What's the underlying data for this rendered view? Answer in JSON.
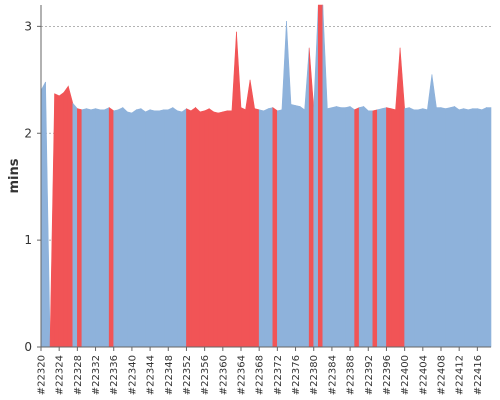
{
  "chart_data": {
    "type": "area",
    "title": "",
    "xlabel": "",
    "ylabel": "mins",
    "ylim": [
      0,
      3.2
    ],
    "yticks": [
      0,
      1,
      2,
      3
    ],
    "grid": "horizontal-dotted",
    "x_tick_labels": [
      "#22320",
      "#22324",
      "#22328",
      "#22332",
      "#22336",
      "#22340",
      "#22344",
      "#22348",
      "#22352",
      "#22356",
      "#22360",
      "#22364",
      "#22368",
      "#22372",
      "#22376",
      "#22380",
      "#22384",
      "#22388",
      "#22392",
      "#22396",
      "#22400",
      "#22404",
      "#22408",
      "#22412",
      "#22416"
    ],
    "x": [
      22320,
      22321,
      22322,
      22323,
      22324,
      22325,
      22326,
      22327,
      22328,
      22329,
      22330,
      22331,
      22332,
      22333,
      22334,
      22335,
      22336,
      22337,
      22338,
      22339,
      22340,
      22341,
      22342,
      22343,
      22344,
      22345,
      22346,
      22347,
      22348,
      22349,
      22350,
      22351,
      22352,
      22353,
      22354,
      22355,
      22356,
      22357,
      22358,
      22359,
      22360,
      22361,
      22362,
      22363,
      22364,
      22365,
      22366,
      22367,
      22368,
      22369,
      22370,
      22371,
      22372,
      22373,
      22374,
      22375,
      22376,
      22377,
      22378,
      22379,
      22380,
      22381,
      22382,
      22383,
      22384,
      22385,
      22386,
      22387,
      22388,
      22389,
      22390,
      22391,
      22392,
      22393,
      22394,
      22395,
      22396,
      22397,
      22398,
      22399,
      22400,
      22401,
      22402,
      22403,
      22404,
      22405,
      22406,
      22407,
      22408,
      22409,
      22410,
      22411,
      22412,
      22413,
      22414,
      22415,
      22416,
      22417,
      22418,
      22419
    ],
    "values": [
      2.4,
      2.48,
      0.05,
      2.37,
      2.35,
      2.38,
      2.44,
      2.28,
      2.23,
      2.22,
      2.23,
      2.22,
      2.23,
      2.22,
      2.22,
      2.24,
      2.21,
      2.22,
      2.24,
      2.2,
      2.19,
      2.22,
      2.23,
      2.2,
      2.22,
      2.21,
      2.21,
      2.22,
      2.22,
      2.24,
      2.21,
      2.2,
      2.23,
      2.21,
      2.24,
      2.2,
      2.21,
      2.23,
      2.2,
      2.19,
      2.2,
      2.21,
      2.21,
      2.95,
      2.24,
      2.22,
      2.5,
      2.23,
      2.22,
      2.21,
      2.23,
      2.24,
      2.21,
      2.22,
      3.05,
      2.27,
      2.26,
      2.25,
      2.22,
      2.8,
      2.24,
      3.2,
      3.2,
      2.23,
      2.24,
      2.25,
      2.24,
      2.24,
      2.25,
      2.22,
      2.24,
      2.25,
      2.21,
      2.21,
      2.22,
      2.23,
      2.24,
      2.23,
      2.22,
      2.8,
      2.23,
      2.24,
      2.22,
      2.22,
      2.23,
      2.22,
      2.55,
      2.24,
      2.24,
      2.23,
      2.24,
      2.25,
      2.22,
      2.23,
      2.22,
      2.23,
      2.23,
      2.22,
      2.24,
      2.24
    ],
    "status": [
      "ok",
      "ok",
      "fail",
      "fail",
      "fail",
      "fail",
      "fail",
      "ok",
      "fail",
      "ok",
      "ok",
      "ok",
      "ok",
      "ok",
      "ok",
      "fail",
      "ok",
      "ok",
      "ok",
      "ok",
      "ok",
      "ok",
      "ok",
      "ok",
      "ok",
      "ok",
      "ok",
      "ok",
      "ok",
      "ok",
      "ok",
      "ok",
      "fail",
      "fail",
      "fail",
      "fail",
      "fail",
      "fail",
      "fail",
      "fail",
      "fail",
      "fail",
      "fail",
      "fail",
      "fail",
      "fail",
      "fail",
      "fail",
      "ok",
      "ok",
      "ok",
      "fail",
      "ok",
      "ok",
      "ok",
      "ok",
      "ok",
      "ok",
      "ok",
      "fail",
      "ok",
      "fail",
      "ok",
      "ok",
      "ok",
      "ok",
      "ok",
      "ok",
      "ok",
      "fail",
      "ok",
      "ok",
      "ok",
      "fail",
      "ok",
      "ok",
      "fail",
      "fail",
      "fail",
      "fail",
      "ok",
      "ok",
      "ok",
      "ok",
      "ok",
      "ok",
      "ok",
      "ok",
      "ok",
      "ok",
      "ok",
      "ok",
      "ok",
      "ok",
      "ok",
      "ok",
      "ok",
      "ok",
      "ok",
      "ok"
    ],
    "colors": {
      "ok": "#8eb2db",
      "fail": "#f15456",
      "grid": "#9a9a9a",
      "axis": "#666666"
    }
  }
}
